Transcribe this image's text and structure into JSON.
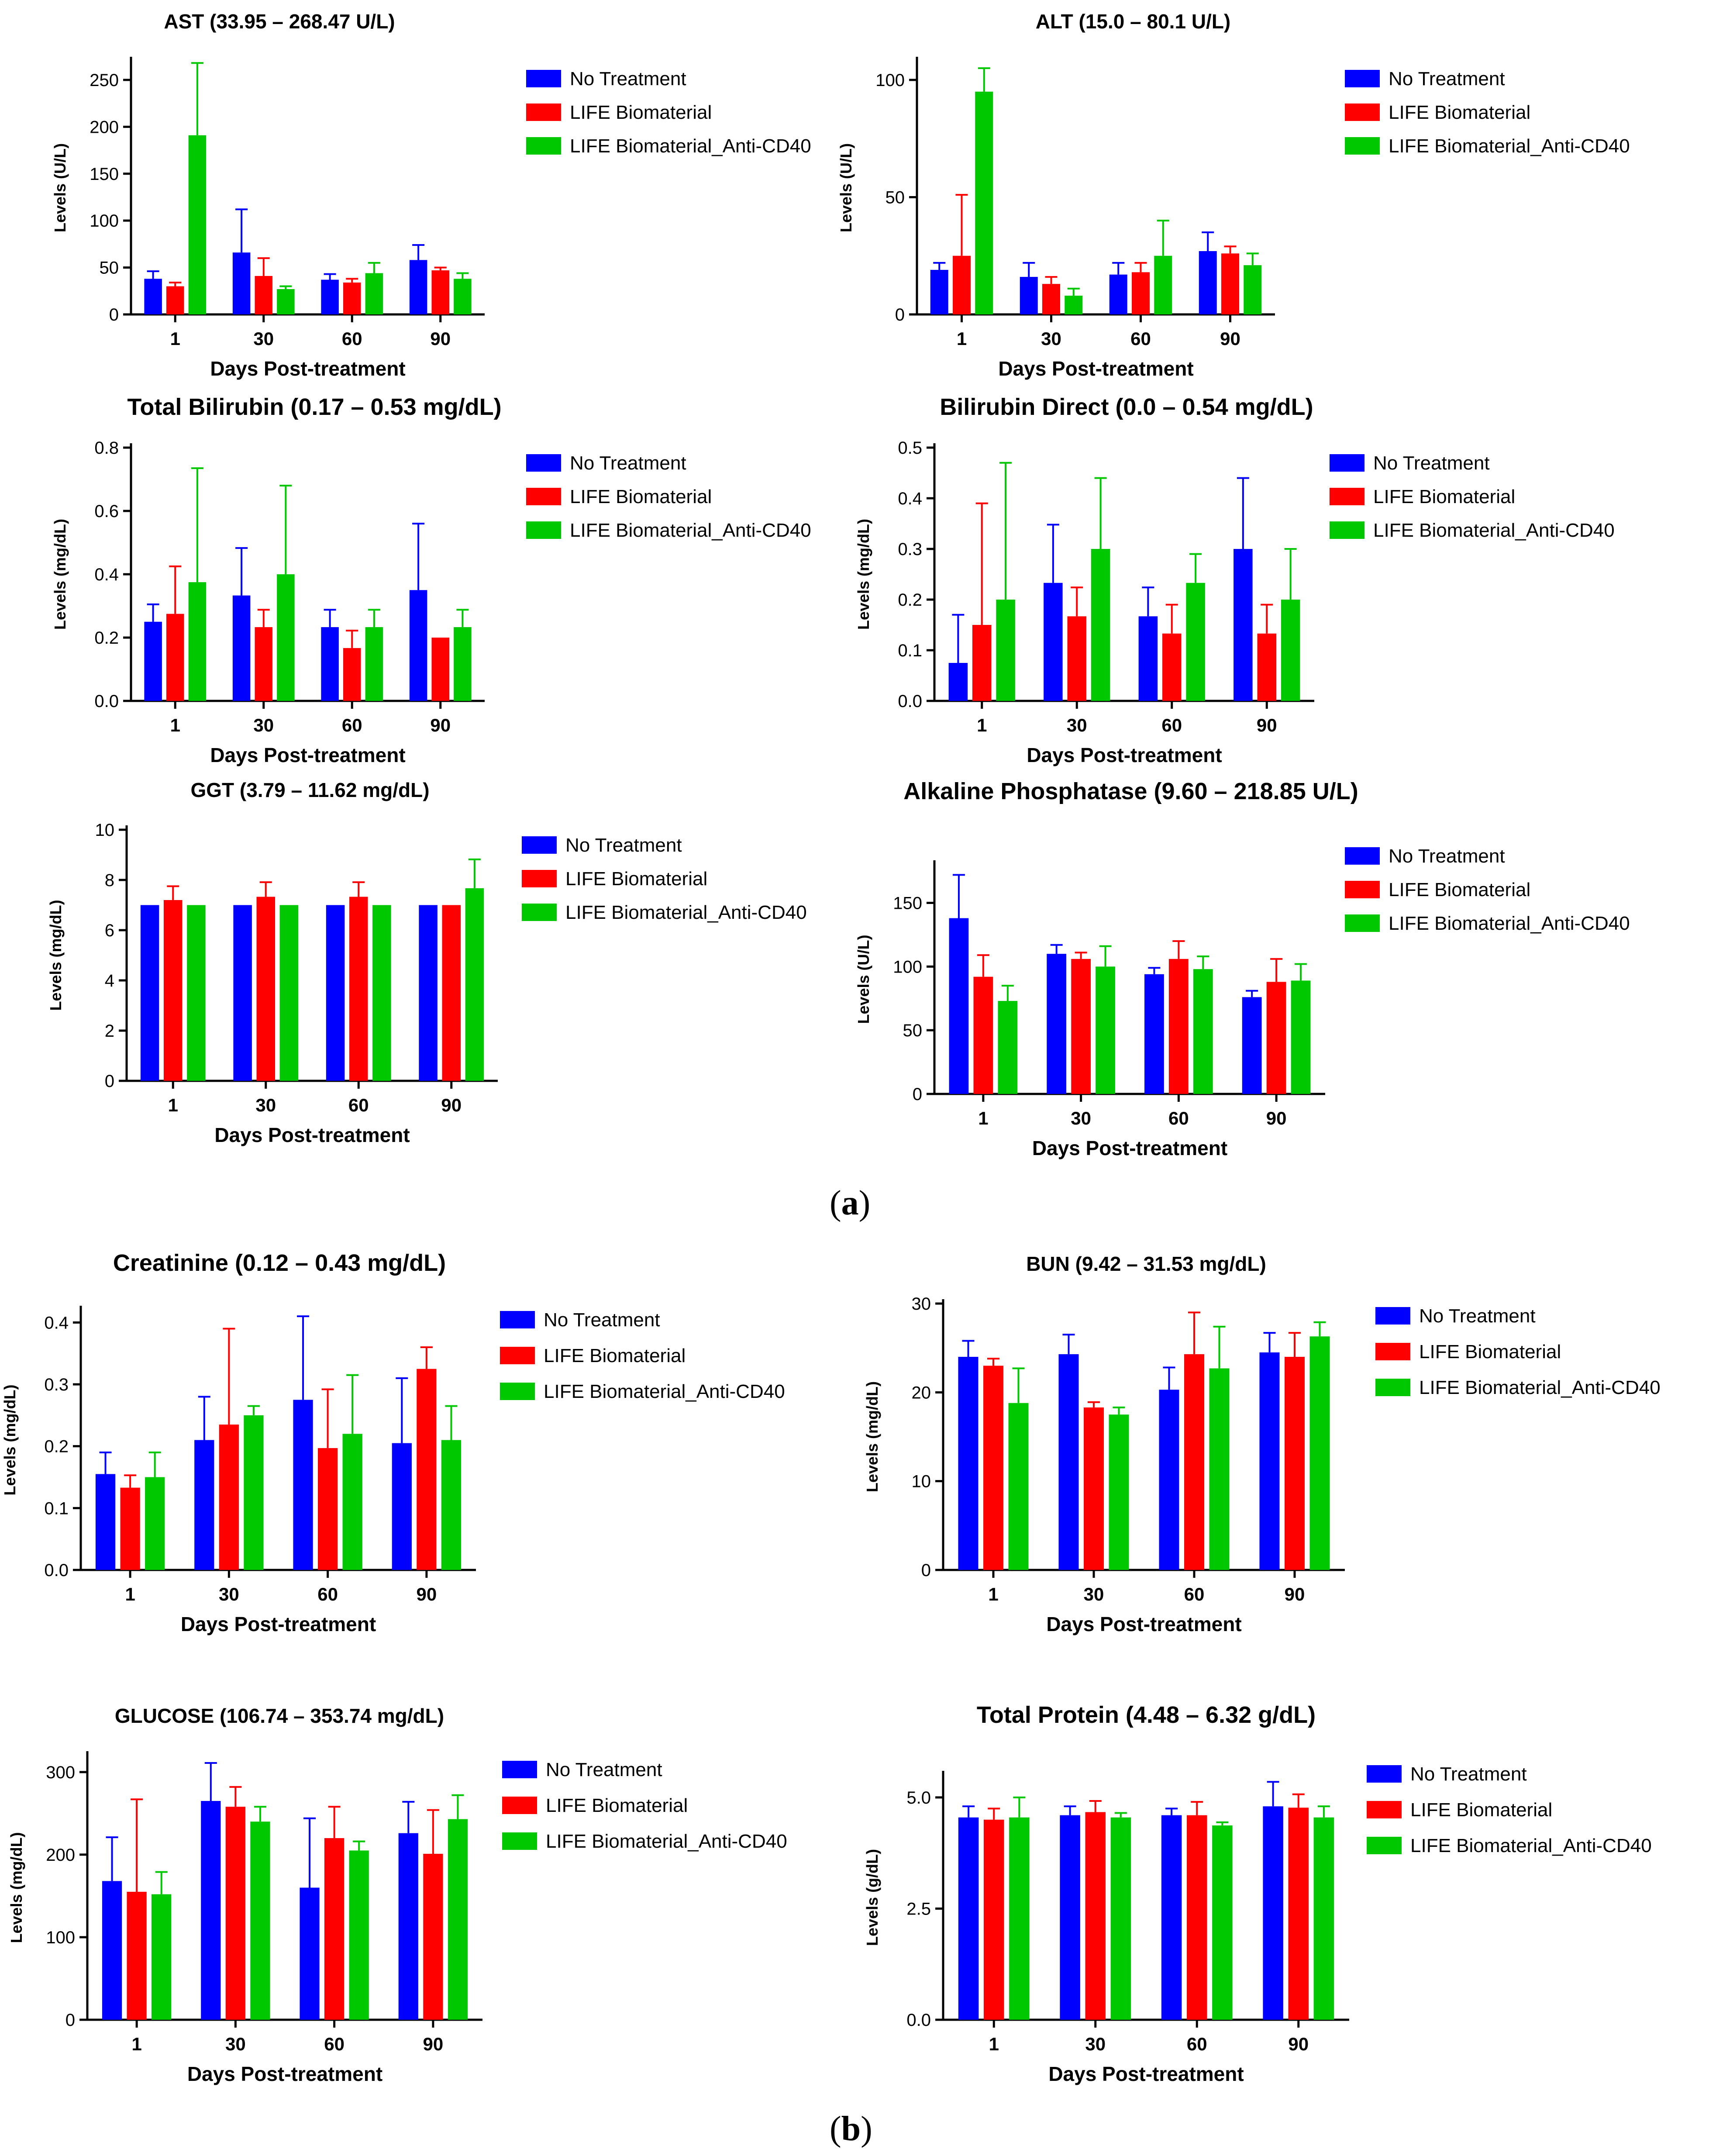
{
  "figure": {
    "panel_labels": [
      "a",
      "b"
    ],
    "colors": {
      "no_treatment": "#0000ff",
      "life": "#ff0000",
      "life_anticd40": "#00c800",
      "axis": "#000000"
    },
    "legend_labels": [
      "No Treatment",
      "LIFE Biomaterial",
      "LIFE Biomaterial_Anti-CD40"
    ]
  },
  "chart_data": [
    {
      "id": "ast",
      "type": "bar",
      "title": "AST (33.95 – 268.47 U/L)",
      "xlabel": "Days Post-treatment",
      "ylabel": "Levels (U/L)",
      "categories": [
        "1",
        "30",
        "60",
        "90"
      ],
      "ylim": [
        0,
        270
      ],
      "yticks": [
        0,
        50,
        100,
        150,
        200,
        250
      ],
      "series": [
        {
          "name": "No Treatment",
          "values": [
            38,
            66,
            37,
            58
          ],
          "errors": [
            8,
            46,
            6,
            16
          ]
        },
        {
          "name": "LIFE Biomaterial",
          "values": [
            30,
            41,
            34,
            47
          ],
          "errors": [
            4,
            19,
            4,
            3
          ]
        },
        {
          "name": "LIFE Biomaterial_Anti-CD40",
          "values": [
            191,
            27,
            44,
            38
          ],
          "errors": [
            77,
            3,
            11,
            6
          ]
        }
      ]
    },
    {
      "id": "alt",
      "type": "bar",
      "title": "ALT (15.0 – 80.1 U/L)",
      "xlabel": "Days Post-treatment",
      "ylabel": "Levels (U/L)",
      "categories": [
        "1",
        "30",
        "60",
        "90"
      ],
      "ylim": [
        0,
        108
      ],
      "yticks": [
        0,
        50,
        100
      ],
      "series": [
        {
          "name": "No Treatment",
          "values": [
            19,
            16,
            17,
            27
          ],
          "errors": [
            3,
            6,
            5,
            8
          ]
        },
        {
          "name": "LIFE Biomaterial",
          "values": [
            25,
            13,
            18,
            26
          ],
          "errors": [
            26,
            3,
            4,
            3
          ]
        },
        {
          "name": "LIFE Biomaterial_Anti-CD40",
          "values": [
            95,
            8,
            25,
            21
          ],
          "errors": [
            10,
            3,
            15,
            5
          ]
        }
      ]
    },
    {
      "id": "total-bilirubin",
      "type": "bar",
      "title": "Total Bilirubin (0.17 – 0.53 mg/dL)",
      "xlabel": "Days Post-treatment",
      "ylabel": "Levels (mg/dL)",
      "categories": [
        "1",
        "30",
        "60",
        "90"
      ],
      "ylim": [
        0,
        0.8
      ],
      "yticks": [
        0.0,
        0.2,
        0.4,
        0.6,
        0.8
      ],
      "decimals": 1,
      "series": [
        {
          "name": "No Treatment",
          "values": [
            0.25,
            0.333,
            0.233,
            0.35
          ],
          "errors": [
            0.055,
            0.15,
            0.055,
            0.21
          ]
        },
        {
          "name": "LIFE Biomaterial",
          "values": [
            0.275,
            0.233,
            0.167,
            0.2
          ],
          "errors": [
            0.15,
            0.055,
            0.055,
            0
          ]
        },
        {
          "name": "LIFE Biomaterial_Anti-CD40",
          "values": [
            0.375,
            0.4,
            0.233,
            0.233
          ],
          "errors": [
            0.36,
            0.28,
            0.055,
            0.055
          ]
        }
      ]
    },
    {
      "id": "bilirubin-direct",
      "type": "bar",
      "title": "Bilirubin Direct (0.0 – 0.54 mg/dL)",
      "xlabel": "Days Post-treatment",
      "ylabel": "Levels (mg/dL)",
      "categories": [
        "1",
        "30",
        "60",
        "90"
      ],
      "ylim": [
        0,
        0.5
      ],
      "yticks": [
        0.0,
        0.1,
        0.2,
        0.3,
        0.4,
        0.5
      ],
      "decimals": 1,
      "series": [
        {
          "name": "No Treatment",
          "values": [
            0.075,
            0.233,
            0.167,
            0.3
          ],
          "errors": [
            0.095,
            0.115,
            0.057,
            0.14
          ]
        },
        {
          "name": "LIFE Biomaterial",
          "values": [
            0.15,
            0.167,
            0.133,
            0.133
          ],
          "errors": [
            0.24,
            0.057,
            0.057,
            0.057
          ]
        },
        {
          "name": "LIFE Biomaterial_Anti-CD40",
          "values": [
            0.2,
            0.3,
            0.233,
            0.2
          ],
          "errors": [
            0.27,
            0.14,
            0.057,
            0.1
          ]
        }
      ]
    },
    {
      "id": "ggt",
      "type": "bar",
      "title": "GGT (3.79 – 11.62 mg/dL)",
      "xlabel": "Days Post-treatment",
      "ylabel": "Levels (mg/dL)",
      "categories": [
        "1",
        "30",
        "60",
        "90"
      ],
      "ylim": [
        0,
        10
      ],
      "yticks": [
        0,
        2,
        4,
        6,
        8,
        10
      ],
      "series": [
        {
          "name": "No Treatment",
          "values": [
            7,
            7,
            7,
            7
          ],
          "errors": [
            0,
            0,
            0,
            0
          ]
        },
        {
          "name": "LIFE Biomaterial",
          "values": [
            7.2,
            7.33,
            7.33,
            7
          ],
          "errors": [
            0.55,
            0.58,
            0.58,
            0
          ]
        },
        {
          "name": "LIFE Biomaterial_Anti-CD40",
          "values": [
            7,
            7,
            7,
            7.67
          ],
          "errors": [
            0,
            0,
            0,
            1.15
          ]
        }
      ]
    },
    {
      "id": "alkaline-phosphatase",
      "type": "bar",
      "title": "Alkaline Phosphatase (9.60 – 218.85 U/L)",
      "xlabel": "Days Post-treatment",
      "ylabel": "Levels (U/L)",
      "categories": [
        "1",
        "30",
        "60",
        "90"
      ],
      "ylim": [
        0,
        180
      ],
      "yticks": [
        0,
        50,
        100,
        150
      ],
      "series": [
        {
          "name": "No Treatment",
          "values": [
            138,
            110,
            94,
            76
          ],
          "errors": [
            34,
            7,
            5,
            5
          ]
        },
        {
          "name": "LIFE Biomaterial",
          "values": [
            92,
            106,
            106,
            88
          ],
          "errors": [
            17,
            5,
            14,
            18
          ]
        },
        {
          "name": "LIFE Biomaterial_Anti-CD40",
          "values": [
            73,
            100,
            98,
            89
          ],
          "errors": [
            12,
            16,
            10,
            13
          ]
        }
      ]
    },
    {
      "id": "creatinine",
      "type": "bar",
      "title": "Creatinine (0.12 – 0.43 mg/dL)",
      "xlabel": "Days Post-treatment",
      "ylabel": "Levels (mg/dL)",
      "categories": [
        "1",
        "30",
        "60",
        "90"
      ],
      "ylim": [
        0,
        0.42
      ],
      "yticks": [
        0.0,
        0.1,
        0.2,
        0.3,
        0.4
      ],
      "decimals": 1,
      "series": [
        {
          "name": "No Treatment",
          "values": [
            0.155,
            0.21,
            0.275,
            0.205
          ],
          "errors": [
            0.035,
            0.07,
            0.135,
            0.105
          ]
        },
        {
          "name": "LIFE Biomaterial",
          "values": [
            0.133,
            0.235,
            0.197,
            0.325
          ],
          "errors": [
            0.02,
            0.155,
            0.095,
            0.035
          ]
        },
        {
          "name": "LIFE Biomaterial_Anti-CD40",
          "values": [
            0.15,
            0.25,
            0.22,
            0.21
          ],
          "errors": [
            0.04,
            0.015,
            0.095,
            0.055
          ]
        }
      ]
    },
    {
      "id": "bun",
      "type": "bar",
      "title": "BUN (9.42 – 31.53 mg/dL)",
      "xlabel": "Days Post-treatment",
      "ylabel": "Levels (mg/dL)",
      "categories": [
        "1",
        "30",
        "60",
        "90"
      ],
      "ylim": [
        0,
        30
      ],
      "yticks": [
        0,
        10,
        20,
        30
      ],
      "series": [
        {
          "name": "No Treatment",
          "values": [
            24,
            24.3,
            20.3,
            24.5
          ],
          "errors": [
            1.8,
            2.2,
            2.5,
            2.2
          ]
        },
        {
          "name": "LIFE Biomaterial",
          "values": [
            23,
            18.3,
            24.3,
            24
          ],
          "errors": [
            0.8,
            0.6,
            4.7,
            2.7
          ]
        },
        {
          "name": "LIFE Biomaterial_Anti-CD40",
          "values": [
            18.8,
            17.5,
            22.7,
            26.3
          ],
          "errors": [
            3.9,
            0.8,
            4.7,
            1.6
          ]
        }
      ]
    },
    {
      "id": "glucose",
      "type": "bar",
      "title": "GLUCOSE (106.74 – 353.74 mg/dL)",
      "xlabel": "Days Post-treatment",
      "ylabel": "Levels (mg/dL)",
      "categories": [
        "1",
        "30",
        "60",
        "90"
      ],
      "ylim": [
        0,
        320
      ],
      "yticks": [
        0,
        100,
        200,
        300
      ],
      "series": [
        {
          "name": "No Treatment",
          "values": [
            168,
            265,
            160,
            226
          ],
          "errors": [
            53,
            46,
            84,
            38
          ]
        },
        {
          "name": "LIFE Biomaterial",
          "values": [
            155,
            258,
            220,
            201
          ],
          "errors": [
            112,
            24,
            38,
            53
          ]
        },
        {
          "name": "LIFE Biomaterial_Anti-CD40",
          "values": [
            152,
            240,
            205,
            243
          ],
          "errors": [
            27,
            18,
            11,
            29
          ]
        }
      ]
    },
    {
      "id": "total-protein",
      "type": "bar",
      "title": "Total Protein (4.48 – 6.32 g/dL)",
      "xlabel": "Days Post-treatment",
      "ylabel": "Levels (g/dL)",
      "categories": [
        "1",
        "30",
        "60",
        "90"
      ],
      "ylim": [
        0,
        5.5
      ],
      "yticks": [
        0.0,
        2.5,
        5.0
      ],
      "decimals": 1,
      "series": [
        {
          "name": "No Treatment",
          "values": [
            4.55,
            4.6,
            4.6,
            4.8
          ],
          "errors": [
            0.25,
            0.2,
            0.15,
            0.55
          ]
        },
        {
          "name": "LIFE Biomaterial",
          "values": [
            4.5,
            4.67,
            4.6,
            4.77
          ],
          "errors": [
            0.25,
            0.25,
            0.3,
            0.3
          ]
        },
        {
          "name": "LIFE Biomaterial_Anti-CD40",
          "values": [
            4.55,
            4.55,
            4.37,
            4.55
          ],
          "errors": [
            0.45,
            0.1,
            0.07,
            0.25
          ]
        }
      ]
    }
  ]
}
